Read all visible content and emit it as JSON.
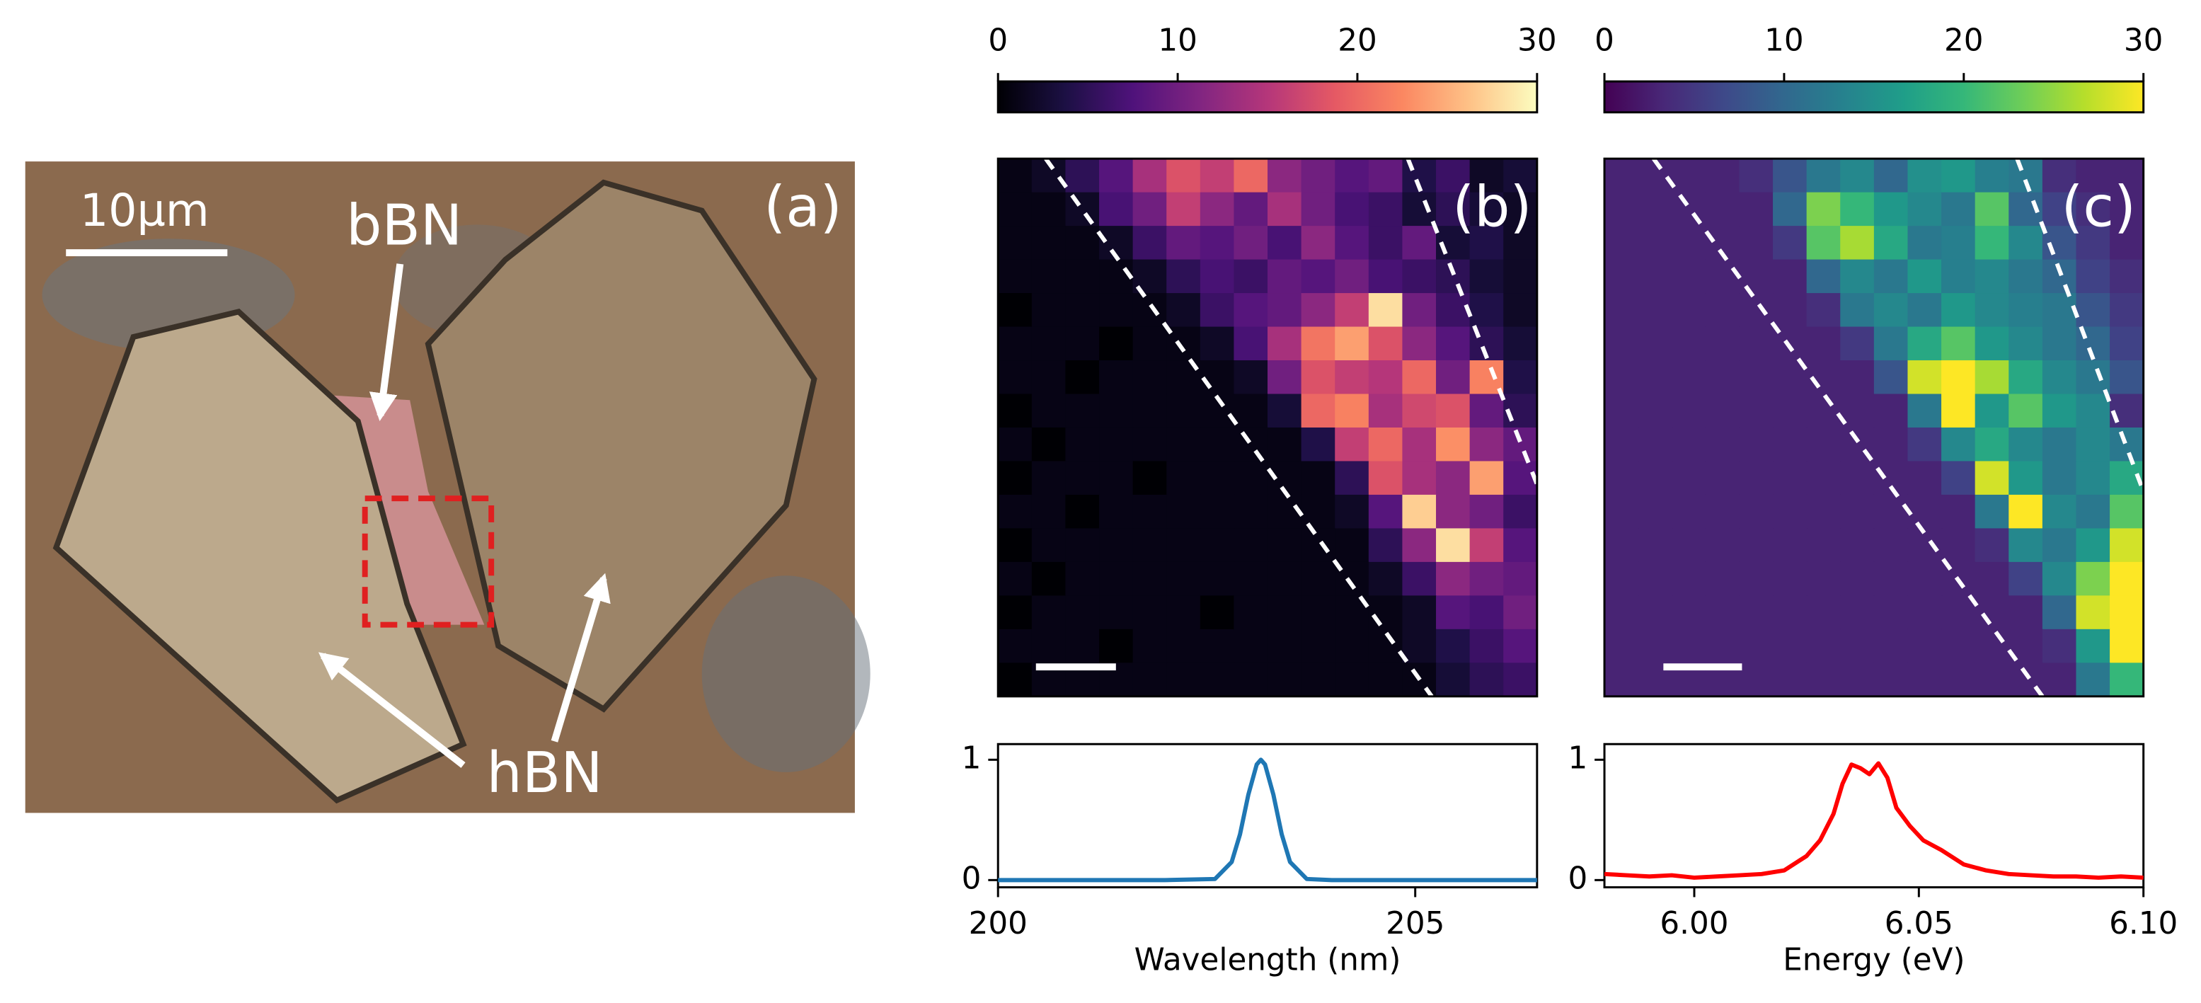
{
  "chart_data": [
    {
      "type": "image",
      "panel_label": "(a)",
      "scale_bar_label": "10µm",
      "annotations": [
        "bBN",
        "hBN"
      ]
    },
    {
      "type": "heatmap",
      "panel_label": "(b)",
      "zlim": [
        0,
        30
      ],
      "zticks": [
        0,
        10,
        20,
        30
      ],
      "colormap": [
        "#000004",
        "#1c1044",
        "#4f127b",
        "#812581",
        "#b5367a",
        "#e55964",
        "#fb8761",
        "#fec287",
        "#fcfdbf"
      ],
      "values": [
        [
          1,
          2,
          5,
          8,
          14,
          18,
          16,
          20,
          12,
          10,
          8,
          9,
          4,
          6,
          2,
          3
        ],
        [
          1,
          1,
          2,
          7,
          10,
          16,
          12,
          9,
          14,
          10,
          7,
          6,
          3,
          5,
          3,
          2
        ],
        [
          1,
          1,
          1,
          2,
          6,
          9,
          8,
          10,
          7,
          12,
          8,
          6,
          9,
          3,
          4,
          2
        ],
        [
          1,
          1,
          1,
          1,
          2,
          5,
          7,
          6,
          9,
          8,
          10,
          7,
          6,
          5,
          3,
          2
        ],
        [
          0,
          1,
          1,
          1,
          1,
          2,
          6,
          8,
          9,
          12,
          16,
          28,
          10,
          6,
          4,
          2
        ],
        [
          1,
          1,
          1,
          0,
          1,
          1,
          2,
          7,
          14,
          21,
          24,
          18,
          12,
          8,
          5,
          3
        ],
        [
          1,
          1,
          0,
          1,
          1,
          1,
          1,
          2,
          10,
          18,
          16,
          15,
          20,
          10,
          22,
          4
        ],
        [
          0,
          1,
          1,
          1,
          1,
          1,
          1,
          1,
          3,
          20,
          22,
          14,
          17,
          18,
          9,
          5
        ],
        [
          1,
          0,
          1,
          1,
          1,
          1,
          1,
          1,
          1,
          4,
          16,
          20,
          14,
          23,
          12,
          9
        ],
        [
          0,
          1,
          1,
          1,
          0,
          1,
          1,
          1,
          1,
          1,
          5,
          18,
          14,
          12,
          24,
          8
        ],
        [
          1,
          1,
          0,
          1,
          1,
          1,
          1,
          1,
          1,
          1,
          2,
          8,
          27,
          12,
          10,
          6
        ],
        [
          0,
          1,
          1,
          1,
          1,
          1,
          1,
          1,
          1,
          1,
          1,
          5,
          12,
          28,
          16,
          8
        ],
        [
          1,
          0,
          1,
          1,
          1,
          1,
          1,
          1,
          1,
          1,
          1,
          2,
          6,
          12,
          10,
          9
        ],
        [
          0,
          1,
          1,
          1,
          1,
          1,
          0,
          1,
          1,
          1,
          1,
          1,
          2,
          8,
          7,
          10
        ],
        [
          1,
          1,
          1,
          0,
          1,
          1,
          1,
          1,
          1,
          1,
          1,
          1,
          2,
          4,
          6,
          8
        ],
        [
          0,
          1,
          1,
          1,
          1,
          1,
          1,
          1,
          1,
          1,
          1,
          1,
          1,
          3,
          5,
          6
        ]
      ]
    },
    {
      "type": "heatmap",
      "panel_label": "(c)",
      "zlim": [
        0,
        30
      ],
      "zticks": [
        0,
        10,
        20,
        30
      ],
      "colormap": [
        "#440154",
        "#482878",
        "#3e4989",
        "#31688e",
        "#26828e",
        "#1f9e89",
        "#35b779",
        "#6ece58",
        "#b5de2b",
        "#fde725"
      ],
      "values": [
        [
          3,
          3,
          3,
          3,
          4,
          8,
          12,
          14,
          10,
          15,
          16,
          13,
          12,
          4,
          3,
          3
        ],
        [
          3,
          3,
          3,
          3,
          3,
          10,
          24,
          20,
          16,
          14,
          12,
          22,
          10,
          6,
          4,
          3
        ],
        [
          3,
          3,
          3,
          3,
          3,
          5,
          22,
          26,
          18,
          12,
          13,
          20,
          14,
          8,
          5,
          3
        ],
        [
          3,
          3,
          3,
          3,
          3,
          3,
          10,
          14,
          12,
          16,
          13,
          14,
          12,
          10,
          6,
          4
        ],
        [
          3,
          3,
          3,
          3,
          3,
          3,
          4,
          12,
          14,
          12,
          16,
          14,
          13,
          12,
          8,
          5
        ],
        [
          3,
          3,
          3,
          3,
          3,
          3,
          3,
          5,
          12,
          18,
          22,
          16,
          14,
          12,
          10,
          6
        ],
        [
          3,
          3,
          3,
          3,
          3,
          3,
          3,
          3,
          8,
          28,
          30,
          26,
          18,
          14,
          12,
          8
        ],
        [
          3,
          3,
          3,
          3,
          3,
          3,
          3,
          3,
          3,
          12,
          30,
          16,
          22,
          16,
          14,
          4
        ],
        [
          3,
          3,
          3,
          3,
          3,
          3,
          3,
          3,
          3,
          5,
          14,
          18,
          14,
          12,
          14,
          12
        ],
        [
          3,
          3,
          3,
          3,
          3,
          3,
          3,
          3,
          3,
          3,
          6,
          28,
          16,
          12,
          14,
          18
        ],
        [
          3,
          3,
          3,
          3,
          3,
          3,
          3,
          3,
          3,
          3,
          3,
          12,
          30,
          14,
          12,
          22
        ],
        [
          3,
          3,
          3,
          3,
          3,
          3,
          3,
          3,
          3,
          3,
          3,
          4,
          14,
          12,
          16,
          28
        ],
        [
          3,
          3,
          3,
          3,
          3,
          3,
          3,
          3,
          3,
          3,
          3,
          3,
          6,
          14,
          24,
          30
        ],
        [
          3,
          3,
          3,
          3,
          3,
          3,
          3,
          3,
          3,
          3,
          3,
          3,
          3,
          10,
          28,
          30
        ],
        [
          3,
          3,
          3,
          3,
          3,
          3,
          3,
          3,
          3,
          3,
          3,
          3,
          3,
          4,
          16,
          30
        ],
        [
          3,
          3,
          3,
          3,
          3,
          3,
          3,
          3,
          3,
          3,
          3,
          3,
          3,
          3,
          12,
          20
        ]
      ]
    },
    {
      "type": "line",
      "xlabel": "Wavelength (nm)",
      "color": "#1f77b4",
      "x": [
        200,
        201,
        202,
        202.6,
        202.8,
        202.9,
        203.0,
        203.1,
        203.15,
        203.2,
        203.3,
        203.4,
        203.5,
        203.7,
        204,
        205,
        206.46
      ],
      "values": [
        0,
        0,
        0,
        0.009,
        0.15,
        0.38,
        0.71,
        0.96,
        1,
        0.96,
        0.71,
        0.38,
        0.15,
        0.009,
        0,
        0,
        0
      ],
      "xlim": [
        200,
        206.46
      ],
      "ylim": [
        -0.06,
        1.13
      ],
      "xticks": [
        200,
        205
      ],
      "yticks": [
        0,
        1
      ]
    },
    {
      "type": "line",
      "xlabel": "Energy (eV)",
      "color": "#ff0000",
      "x": [
        5.98,
        5.985,
        5.99,
        5.995,
        6.0,
        6.005,
        6.01,
        6.015,
        6.02,
        6.025,
        6.028,
        6.031,
        6.033,
        6.035,
        6.037,
        6.039,
        6.041,
        6.043,
        6.045,
        6.048,
        6.051,
        6.055,
        6.06,
        6.065,
        6.07,
        6.075,
        6.08,
        6.085,
        6.09,
        6.095,
        6.1
      ],
      "values": [
        0.05,
        0.04,
        0.03,
        0.04,
        0.02,
        0.03,
        0.04,
        0.05,
        0.08,
        0.2,
        0.33,
        0.55,
        0.8,
        0.96,
        0.93,
        0.88,
        0.97,
        0.85,
        0.6,
        0.45,
        0.33,
        0.25,
        0.13,
        0.08,
        0.05,
        0.04,
        0.03,
        0.03,
        0.02,
        0.03,
        0.02
      ],
      "xlim": [
        5.98,
        6.1
      ],
      "ylim": [
        -0.06,
        1.13
      ],
      "xticks": [
        {
          "value": 6.0,
          "label": "6.00"
        },
        {
          "value": 6.05,
          "label": "6.05"
        },
        {
          "value": 6.1,
          "label": "6.10"
        }
      ],
      "yticks": [
        0,
        1
      ]
    }
  ]
}
